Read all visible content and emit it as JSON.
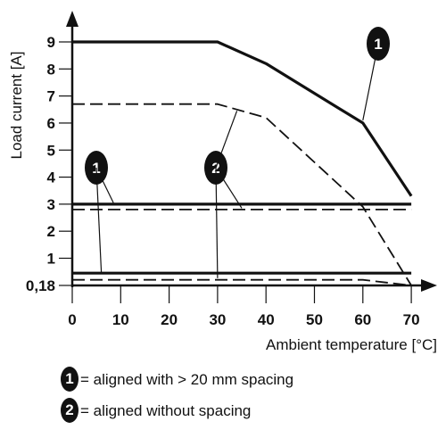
{
  "chart_data": {
    "type": "line",
    "xlabel": "Ambient temperature [°C]",
    "ylabel": "Load current [A]",
    "xlim": [
      0,
      70
    ],
    "ylim": [
      0,
      10
    ],
    "x_ticks": [
      "0",
      "10",
      "20",
      "30",
      "40",
      "50",
      "60",
      "70"
    ],
    "y_ticks": [
      {
        "value": 9,
        "label": "9"
      },
      {
        "value": 8,
        "label": "8"
      },
      {
        "value": 7,
        "label": "7"
      },
      {
        "value": 6,
        "label": "6"
      },
      {
        "value": 5,
        "label": "5"
      },
      {
        "value": 4,
        "label": "4"
      },
      {
        "value": 3,
        "label": "3"
      },
      {
        "value": 2,
        "label": "2"
      },
      {
        "value": 1,
        "label": "1"
      },
      {
        "value": 0.18,
        "label": "0,18"
      }
    ],
    "series": [
      {
        "marker": "1",
        "style": "solid",
        "x": [
          0,
          30,
          40,
          60,
          70
        ],
        "y": [
          9,
          9,
          8.2,
          6,
          3.3
        ]
      },
      {
        "marker": "2",
        "style": "dashed",
        "x": [
          0,
          30,
          40,
          60,
          70
        ],
        "y": [
          6.7,
          6.7,
          6.2,
          2.9,
          0.18
        ]
      },
      {
        "marker": "1",
        "style": "solid",
        "x": [
          0,
          70
        ],
        "y": [
          3,
          3
        ]
      },
      {
        "marker": "2",
        "style": "dashed",
        "x": [
          0,
          70
        ],
        "y": [
          2.8,
          2.8
        ]
      },
      {
        "marker": "1",
        "style": "solid",
        "x": [
          0,
          70
        ],
        "y": [
          0.55,
          0.55
        ]
      },
      {
        "marker": "2",
        "style": "dashed",
        "x": [
          0,
          60,
          70
        ],
        "y": [
          0.35,
          0.35,
          0.18
        ]
      }
    ],
    "markers": [
      {
        "label": "1",
        "x": 62,
        "y": 9.8,
        "target": [
          60,
          6.1
        ]
      },
      {
        "label": "2",
        "x": 30,
        "y": 4.4,
        "target": [
          35,
          2.85
        ]
      },
      {
        "label": "1",
        "x": 5,
        "y": 4.4,
        "target": [
          8.5,
          3.05
        ]
      },
      {
        "label": "2",
        "x": 30,
        "y": 4.4,
        "target": [
          30,
          0.4
        ]
      },
      {
        "label": "1",
        "x": 5,
        "y": 4.4,
        "target": [
          6,
          0.58
        ]
      },
      {
        "label": "2",
        "x": 30,
        "y": 4.4,
        "target": [
          34,
          6.45
        ]
      }
    ],
    "legend": [
      {
        "marker": "1",
        "text": "= aligned with > 20 mm spacing"
      },
      {
        "marker": "2",
        "text": "= aligned without spacing"
      }
    ]
  }
}
